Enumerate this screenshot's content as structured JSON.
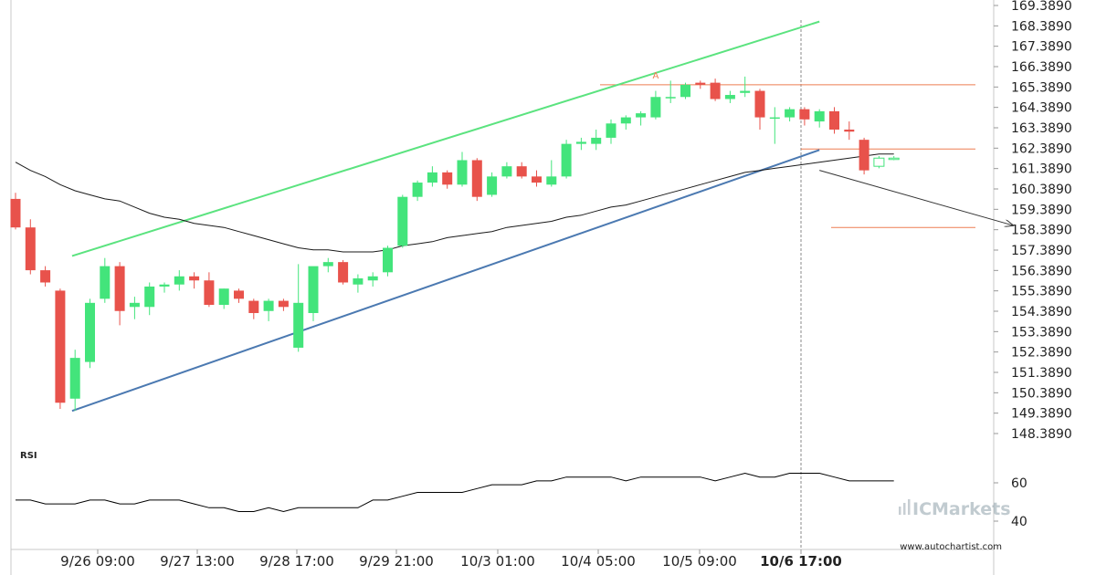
{
  "chart_data": [
    {
      "type": "candlestick",
      "panel": "price",
      "x_tick_labels": [
        "9/26 09:00",
        "9/27 13:00",
        "9/28 17:00",
        "9/29 21:00",
        "10/3 01:00",
        "10/4 05:00",
        "10/5 09:00",
        "10/6 17:00"
      ],
      "highlighted_x_label": "10/6 17:00",
      "y_tick_labels": [
        "169.3890",
        "168.3890",
        "167.3890",
        "166.3890",
        "165.3890",
        "164.3890",
        "163.3890",
        "162.3890",
        "161.3890",
        "160.3890",
        "159.3890",
        "158.3890",
        "157.3890",
        "156.3890",
        "155.3890",
        "154.3890",
        "153.3890",
        "152.3890",
        "151.3890",
        "150.3890",
        "149.3890",
        "148.3890"
      ],
      "ylim": [
        147.8,
        169.4
      ],
      "candles": [
        [
          159.9,
          160.2,
          158.4,
          158.5
        ],
        [
          158.5,
          158.9,
          156.2,
          156.4
        ],
        [
          156.4,
          156.6,
          155.6,
          155.8
        ],
        [
          155.4,
          155.5,
          149.6,
          149.9
        ],
        [
          150.1,
          152.5,
          149.5,
          152.1
        ],
        [
          151.9,
          155.0,
          151.6,
          154.8
        ],
        [
          155.0,
          157.0,
          154.8,
          156.6
        ],
        [
          156.6,
          156.8,
          153.7,
          154.4
        ],
        [
          154.6,
          155.1,
          154.0,
          154.8
        ],
        [
          154.6,
          155.8,
          154.2,
          155.6
        ],
        [
          155.6,
          155.8,
          155.3,
          155.7
        ],
        [
          155.7,
          156.4,
          155.4,
          156.1
        ],
        [
          156.1,
          156.3,
          155.5,
          155.9
        ],
        [
          155.9,
          156.3,
          154.6,
          154.7
        ],
        [
          154.7,
          155.5,
          154.5,
          155.5
        ],
        [
          155.4,
          155.5,
          154.8,
          155.0
        ],
        [
          154.9,
          155.0,
          154.0,
          154.3
        ],
        [
          154.4,
          155.0,
          153.9,
          154.9
        ],
        [
          154.9,
          155.0,
          154.4,
          154.6
        ],
        [
          152.6,
          156.7,
          152.4,
          154.8
        ],
        [
          154.3,
          156.5,
          153.9,
          156.6
        ],
        [
          156.6,
          157.0,
          156.3,
          156.8
        ],
        [
          156.8,
          156.9,
          155.7,
          155.8
        ],
        [
          155.7,
          156.2,
          155.3,
          156.0
        ],
        [
          155.9,
          156.3,
          155.6,
          156.1
        ],
        [
          156.3,
          157.6,
          156.1,
          157.5
        ],
        [
          157.6,
          160.1,
          157.5,
          160.0
        ],
        [
          160.0,
          160.8,
          159.8,
          160.7
        ],
        [
          160.7,
          161.5,
          160.5,
          161.2
        ],
        [
          161.2,
          161.3,
          160.4,
          160.6
        ],
        [
          160.6,
          162.2,
          160.5,
          161.8
        ],
        [
          161.8,
          161.9,
          159.8,
          160.0
        ],
        [
          160.1,
          161.2,
          160.0,
          161.0
        ],
        [
          161.0,
          161.7,
          160.9,
          161.5
        ],
        [
          161.5,
          161.7,
          160.9,
          161.0
        ],
        [
          161.0,
          161.3,
          160.5,
          160.7
        ],
        [
          160.6,
          161.8,
          160.5,
          161.0
        ],
        [
          161.0,
          162.8,
          160.9,
          162.6
        ],
        [
          162.6,
          162.9,
          162.3,
          162.7
        ],
        [
          162.6,
          163.3,
          162.3,
          162.9
        ],
        [
          162.9,
          163.8,
          162.6,
          163.6
        ],
        [
          163.6,
          164.0,
          163.3,
          163.9
        ],
        [
          163.9,
          164.2,
          163.5,
          164.1
        ],
        [
          163.9,
          165.2,
          163.8,
          164.9
        ],
        [
          164.9,
          165.7,
          164.6,
          164.9
        ],
        [
          164.9,
          165.6,
          164.8,
          165.5
        ],
        [
          165.6,
          165.7,
          165.3,
          165.5
        ],
        [
          165.6,
          165.8,
          164.7,
          164.8
        ],
        [
          164.8,
          165.2,
          164.6,
          165.0
        ],
        [
          165.1,
          165.9,
          164.9,
          165.2
        ],
        [
          165.2,
          165.3,
          163.3,
          163.9
        ],
        [
          163.9,
          164.4,
          162.6,
          163.9
        ],
        [
          163.9,
          164.4,
          163.7,
          164.3
        ],
        [
          164.3,
          164.4,
          163.5,
          163.8
        ],
        [
          163.7,
          164.3,
          163.4,
          164.2
        ],
        [
          164.2,
          164.4,
          163.1,
          163.3
        ],
        [
          163.3,
          163.7,
          162.8,
          163.2
        ],
        [
          162.8,
          162.9,
          161.1,
          161.3
        ],
        [
          161.5,
          162.0,
          161.4,
          161.9
        ],
        [
          161.9,
          162.0,
          161.8,
          161.9
        ]
      ],
      "moving_average": [
        161.7,
        161.3,
        161.0,
        160.6,
        160.3,
        160.1,
        159.9,
        159.8,
        159.5,
        159.2,
        159.0,
        158.9,
        158.7,
        158.6,
        158.5,
        158.3,
        158.1,
        157.9,
        157.7,
        157.5,
        157.4,
        157.4,
        157.3,
        157.3,
        157.3,
        157.4,
        157.6,
        157.7,
        157.8,
        158.0,
        158.1,
        158.2,
        158.3,
        158.5,
        158.6,
        158.7,
        158.8,
        159.0,
        159.1,
        159.3,
        159.5,
        159.6,
        159.8,
        160.0,
        160.2,
        160.4,
        160.6,
        160.8,
        161.0,
        161.2,
        161.3,
        161.4,
        161.5,
        161.6,
        161.7,
        161.8,
        161.9,
        162.0,
        162.1,
        162.1
      ],
      "channel_upper_line": {
        "x_candle": [
          3.8,
          54.0
        ],
        "y": [
          157.1,
          168.6
        ]
      },
      "channel_lower_line": {
        "x_candle": [
          3.8,
          54.0
        ],
        "y": [
          149.5,
          162.3
        ]
      },
      "resistance_level": 165.5,
      "support_level": 162.35,
      "target_level": 158.5,
      "forecast_arrow": {
        "x_candle": [
          54.0,
          67.0
        ],
        "y": [
          161.3,
          158.6
        ]
      },
      "point_label": "A",
      "colors": {
        "up": "#43e47b",
        "down": "#e8524b",
        "upper_line": "#5be37f",
        "lower_line": "#4b79b1",
        "level": "#ed7d52",
        "ma": "#1a1a1a"
      }
    },
    {
      "type": "line",
      "panel": "indicator",
      "title": "RSI",
      "y_tick_labels": [
        "60",
        "40"
      ],
      "ylim": [
        32,
        82
      ],
      "values": [
        51,
        51,
        49,
        49,
        49,
        51,
        51,
        49,
        49,
        51,
        51,
        51,
        49,
        47,
        47,
        45,
        45,
        47,
        45,
        47,
        47,
        47,
        47,
        47,
        51,
        51,
        53,
        55,
        55,
        55,
        55,
        57,
        59,
        59,
        59,
        61,
        61,
        63,
        63,
        63,
        63,
        61,
        63,
        63,
        63,
        63,
        63,
        61,
        63,
        65,
        63,
        63,
        65,
        65,
        65,
        63,
        61,
        61,
        61,
        61
      ]
    }
  ],
  "watermark": {
    "brand": "ICMarkets"
  },
  "footer_url": "www.autochartist.com"
}
